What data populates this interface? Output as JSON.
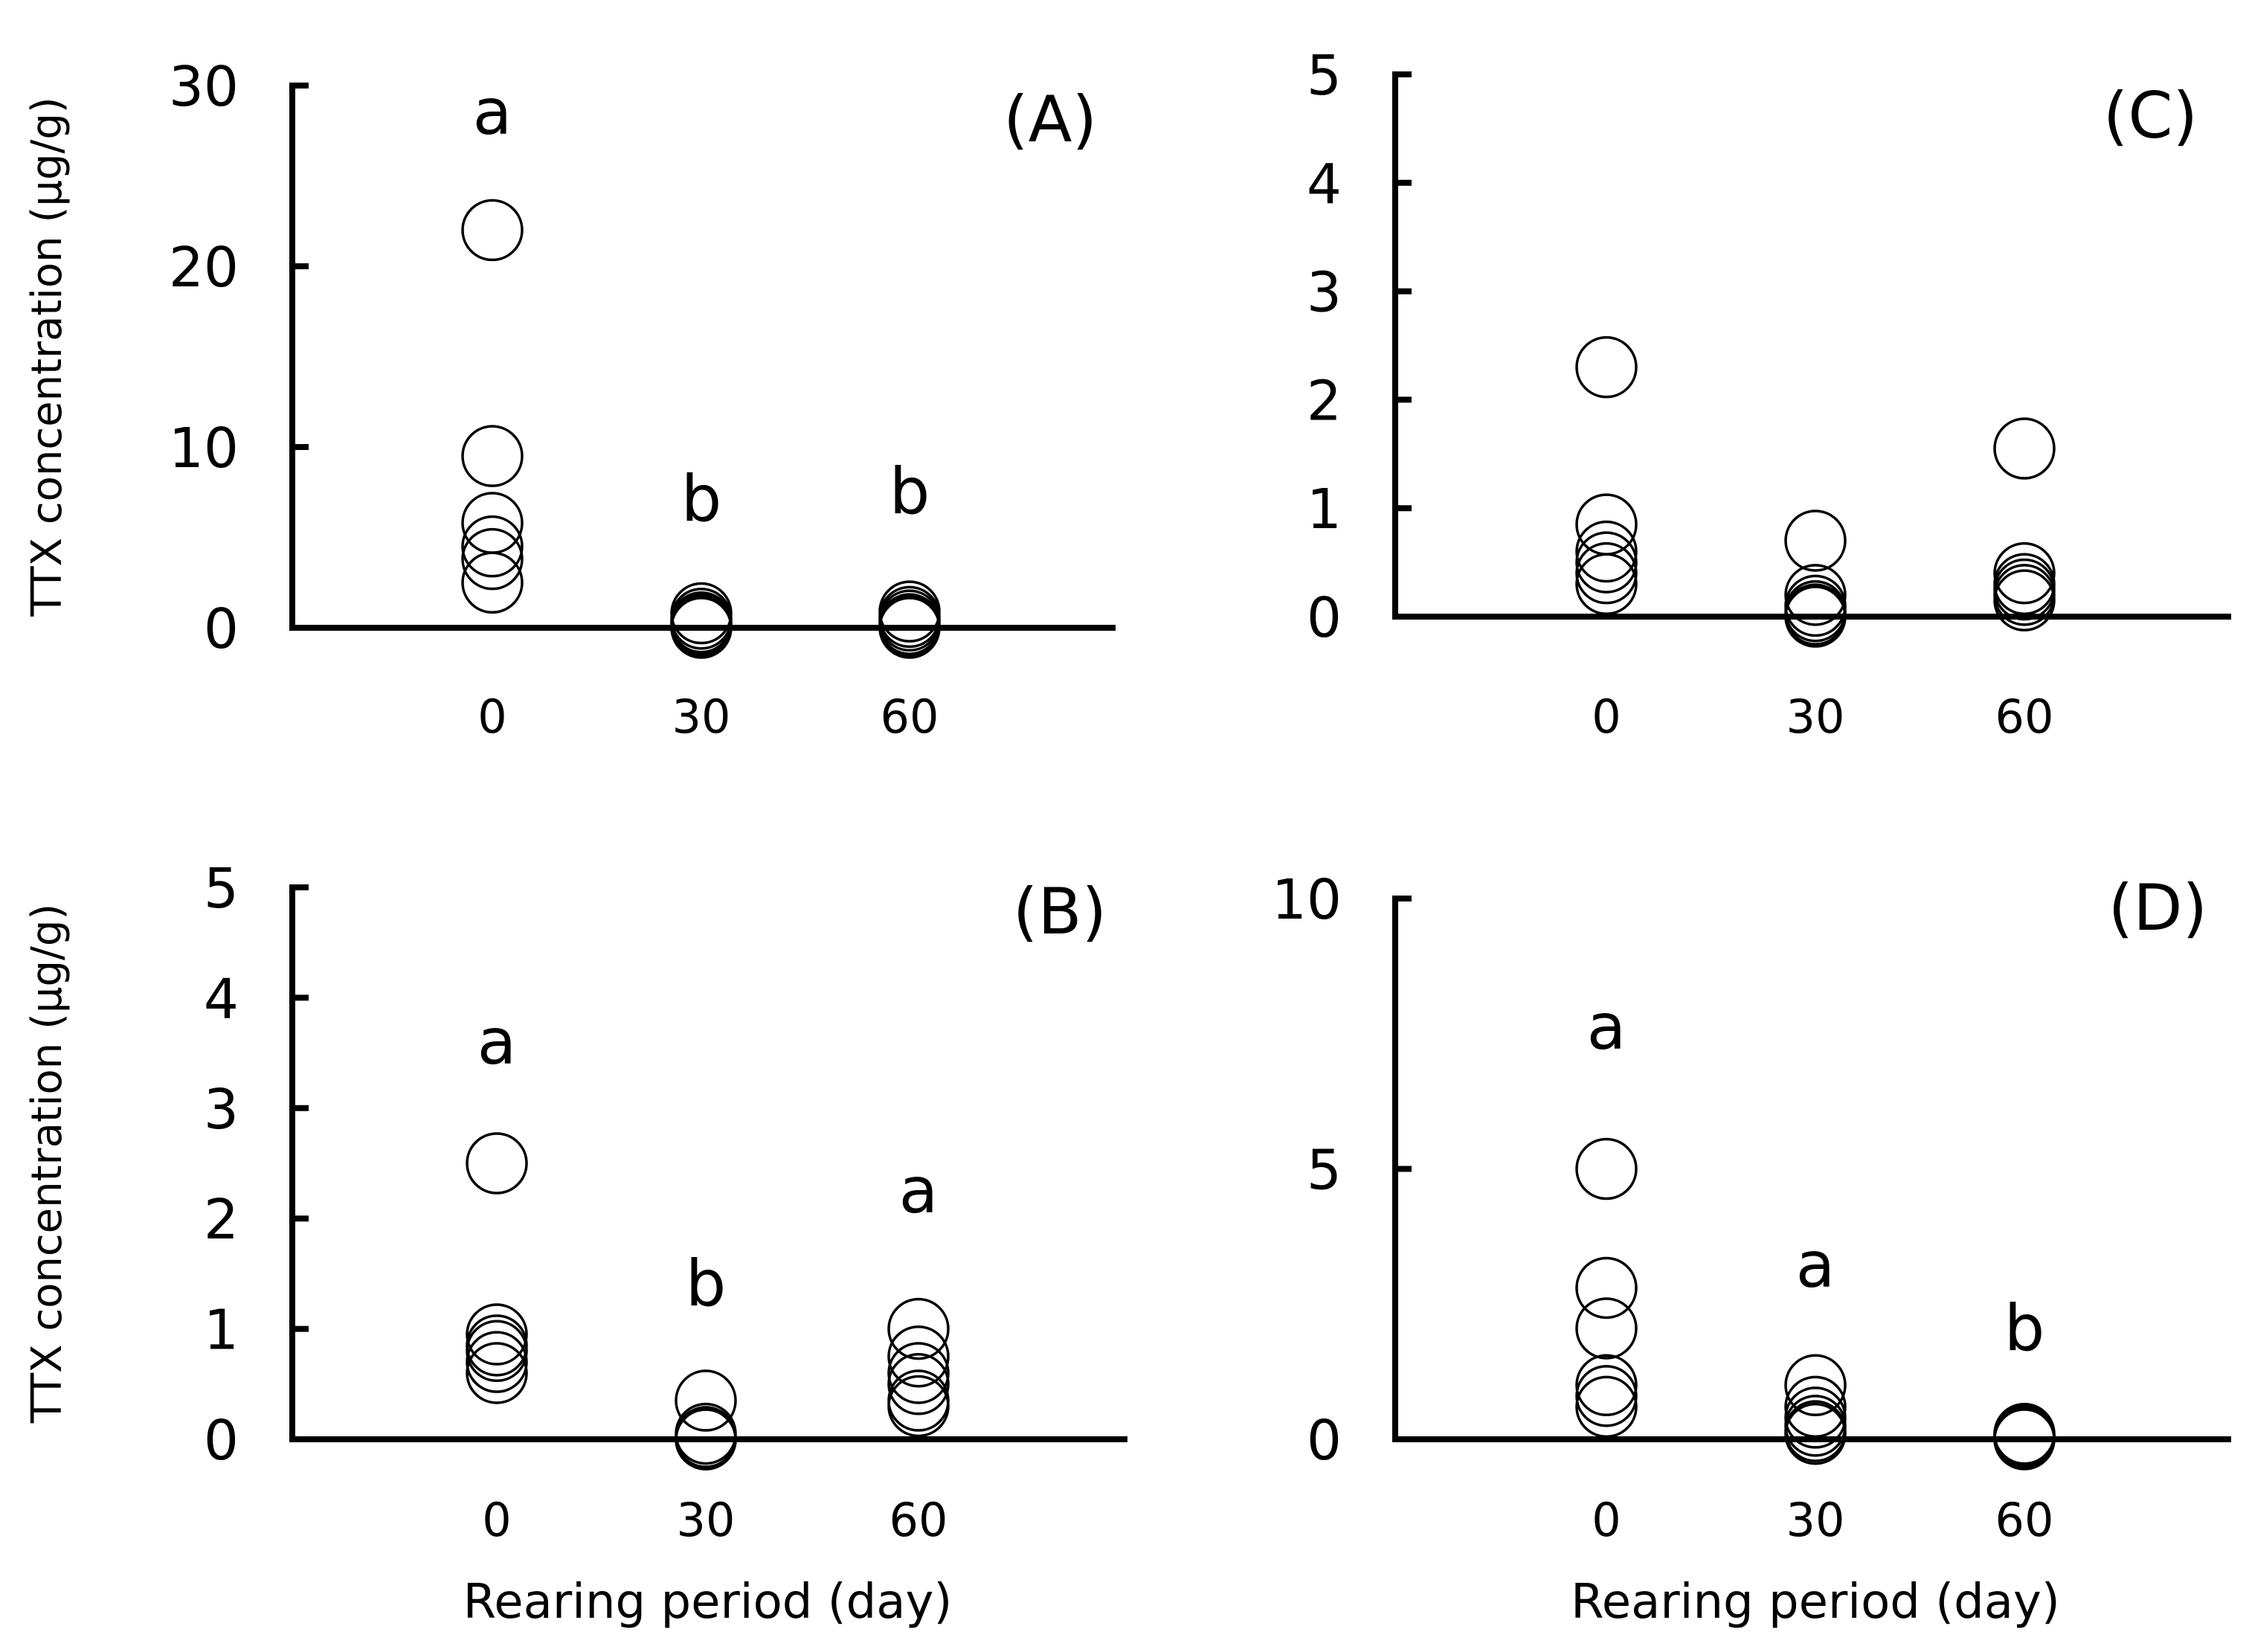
{
  "chart_data": [
    {
      "type": "scatter",
      "panel_label": "(A)",
      "ylabel": "TTX concentration (μg/g)",
      "xlabel": "",
      "ylim": [
        0,
        30
      ],
      "yticks": [
        "0",
        "10",
        "20",
        "30"
      ],
      "categories": [
        "0",
        "30",
        "60"
      ],
      "series": [
        {
          "x": "0",
          "values": [
            22.0,
            9.5,
            5.8,
            4.5,
            3.8,
            2.5
          ],
          "significance": "a"
        },
        {
          "x": "30",
          "values": [
            0.8,
            0.5,
            0.3,
            0.2,
            0.1,
            0.0
          ],
          "significance": "b"
        },
        {
          "x": "60",
          "values": [
            0.9,
            0.6,
            0.4,
            0.2,
            0.1,
            0.0
          ],
          "significance": "b"
        }
      ]
    },
    {
      "type": "scatter",
      "panel_label": "(B)",
      "ylabel": "TTX concentration (μg/g)",
      "xlabel": "Rearing period (day)",
      "ylim": [
        0,
        5
      ],
      "yticks": [
        "0",
        "1",
        "2",
        "3",
        "4",
        "5"
      ],
      "categories": [
        "0",
        "30",
        "60"
      ],
      "series": [
        {
          "x": "0",
          "values": [
            2.5,
            0.95,
            0.85,
            0.8,
            0.7,
            0.6
          ],
          "significance": "a"
        },
        {
          "x": "30",
          "values": [
            0.35,
            0.05,
            0.02,
            0.0,
            0.0,
            0.0
          ],
          "significance": "b"
        },
        {
          "x": "60",
          "values": [
            1.0,
            0.75,
            0.6,
            0.5,
            0.35,
            0.3
          ],
          "significance": "a"
        }
      ]
    },
    {
      "type": "scatter",
      "panel_label": "(C)",
      "ylabel": "",
      "xlabel": "",
      "ylim": [
        0,
        5
      ],
      "yticks": [
        "0",
        "1",
        "2",
        "3",
        "4",
        "5"
      ],
      "categories": [
        "0",
        "30",
        "60"
      ],
      "series": [
        {
          "x": "0",
          "values": [
            2.3,
            0.85,
            0.6,
            0.5,
            0.4,
            0.3
          ],
          "significance": ""
        },
        {
          "x": "30",
          "values": [
            0.7,
            0.2,
            0.1,
            0.05,
            0.02,
            0.0
          ],
          "significance": ""
        },
        {
          "x": "60",
          "values": [
            1.55,
            0.4,
            0.3,
            0.25,
            0.2,
            0.15
          ],
          "significance": ""
        }
      ]
    },
    {
      "type": "scatter",
      "panel_label": "(D)",
      "ylabel": "",
      "xlabel": "Rearing period (day)",
      "ylim": [
        0,
        10
      ],
      "yticks": [
        "0",
        "5",
        "10"
      ],
      "categories": [
        "0",
        "30",
        "60"
      ],
      "series": [
        {
          "x": "0",
          "values": [
            5.0,
            2.8,
            2.05,
            1.0,
            0.8,
            0.6
          ],
          "significance": "a"
        },
        {
          "x": "30",
          "values": [
            1.0,
            0.6,
            0.4,
            0.25,
            0.15,
            0.1
          ],
          "significance": "a"
        },
        {
          "x": "60",
          "values": [
            0.1,
            0.08,
            0.05,
            0.03,
            0.02,
            0.0
          ],
          "significance": "b"
        }
      ]
    }
  ]
}
